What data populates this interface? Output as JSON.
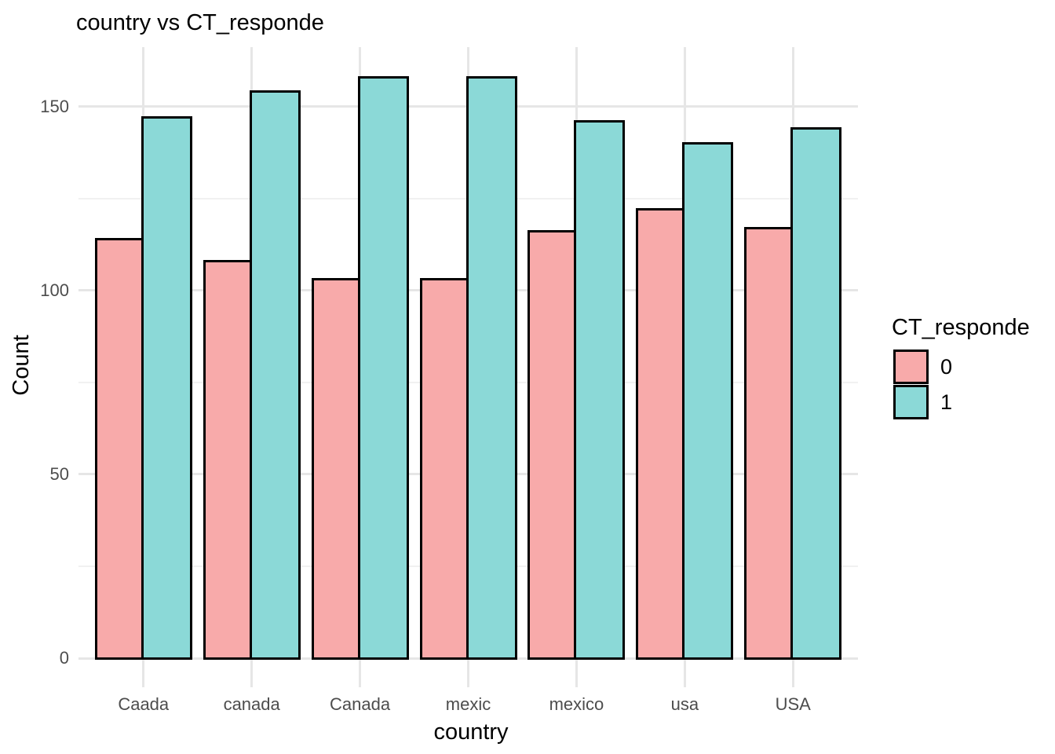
{
  "chart_data": {
    "type": "bar",
    "title": "country vs CT_responde",
    "xlabel": "country",
    "ylabel": "Count",
    "categories": [
      "Caada",
      "canada",
      "Canada",
      "mexic",
      "mexico",
      "usa",
      "USA"
    ],
    "series": [
      {
        "name": "0",
        "color": "#F8AAAA",
        "values": [
          114,
          108,
          103,
          103,
          116,
          122,
          117
        ]
      },
      {
        "name": "1",
        "color": "#8BD9D7",
        "values": [
          147,
          154,
          158,
          158,
          146,
          140,
          144
        ]
      }
    ],
    "legend_title": "CT_responde",
    "legend_position": "right",
    "y_axis": {
      "tick_labels": [
        "0",
        "50",
        "100",
        "150"
      ],
      "ticks": [
        0,
        50,
        100,
        150
      ],
      "minor_ticks": [
        25,
        75,
        125
      ],
      "range": [
        -8,
        166
      ]
    },
    "grid": true,
    "grouping": "dodge",
    "bar_outline_color": "#000000",
    "colors": {
      "background": "#FFFFFF",
      "grid_major": "#E6E6E6",
      "grid_minor": "#F1F1F1",
      "tick_label_text": "#4D4D4D",
      "title_text": "#000000"
    }
  }
}
